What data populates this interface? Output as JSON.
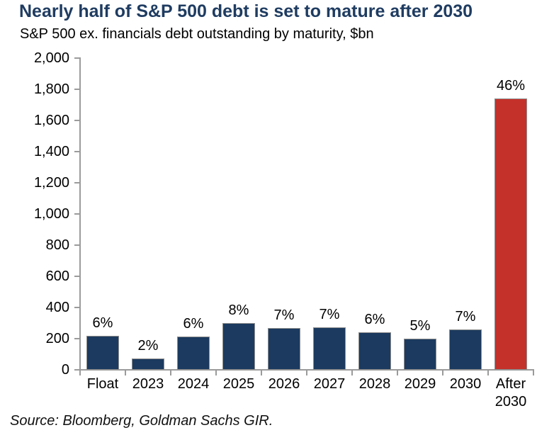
{
  "chart_data": {
    "type": "bar",
    "title": "Nearly half of S&P 500 debt is set to mature after 2030",
    "subtitle": "S&P 500 ex. financials debt outstanding by maturity, $bn",
    "categories": [
      "Float",
      "2023",
      "2024",
      "2025",
      "2026",
      "2027",
      "2028",
      "2029",
      "2030",
      "After 2030"
    ],
    "values": [
      220,
      72,
      214,
      298,
      270,
      272,
      242,
      200,
      258,
      1740
    ],
    "bar_labels": [
      "6%",
      "2%",
      "6%",
      "8%",
      "7%",
      "7%",
      "6%",
      "5%",
      "7%",
      "46%"
    ],
    "bar_colors": [
      "#1c3a5f",
      "#1c3a5f",
      "#1c3a5f",
      "#1c3a5f",
      "#1c3a5f",
      "#1c3a5f",
      "#1c3a5f",
      "#1c3a5f",
      "#1c3a5f",
      "#c4312a"
    ],
    "xlabel": "",
    "ylabel": "",
    "ylim": [
      0,
      2000
    ],
    "ytick_step": 200,
    "ytick_labels": [
      "0",
      "200",
      "400",
      "600",
      "800",
      "1,000",
      "1,200",
      "1,400",
      "1,600",
      "1,800",
      "2,000"
    ],
    "grid": false,
    "legend": null
  },
  "colors": {
    "title_text": "#1f3c61",
    "bar_navy": "#1c3a5f",
    "bar_red": "#c4312a",
    "axis_gray": "#9b9b9b"
  },
  "footer": {
    "source": "Source: Bloomberg, Goldman Sachs GIR."
  }
}
